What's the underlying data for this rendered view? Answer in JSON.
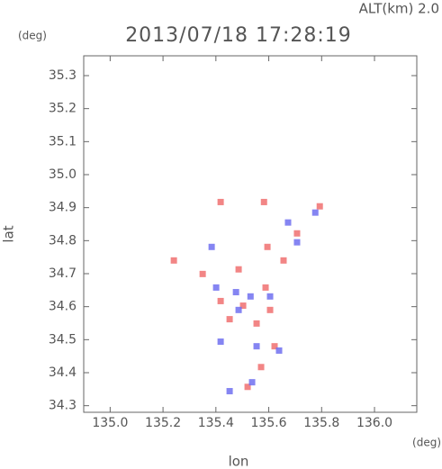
{
  "chart_data": {
    "type": "scatter",
    "title": "2013/07/18 17:28:19",
    "subtitle": "ALT(km) 2.0",
    "y_unit": "(deg)",
    "x_unit": "(deg)",
    "x_label": "lon",
    "y_label": "lat",
    "xlim": [
      134.9,
      136.16
    ],
    "ylim": [
      34.28,
      35.36
    ],
    "xticks": [
      {
        "value": 135,
        "label": "135.0"
      },
      135.2,
      135.4,
      135.6,
      135.8,
      {
        "value": 136,
        "label": "136.0"
      }
    ],
    "yticks": [
      34.3,
      34.4,
      34.5,
      34.6,
      34.7,
      34.8,
      34.9,
      {
        "value": 35,
        "label": "35.0"
      },
      35.1,
      35.2,
      35.3
    ],
    "grid": false,
    "series": [
      {
        "color": "#f07070",
        "x": [
          135.418,
          135.582,
          135.241,
          135.595,
          135.35,
          135.486,
          135.588,
          135.503,
          135.452,
          135.554,
          135.605,
          135.622,
          135.571,
          135.52,
          135.418,
          135.707,
          135.793,
          135.656
        ],
        "y": [
          34.917,
          34.917,
          34.74,
          34.781,
          34.699,
          34.713,
          34.658,
          34.603,
          34.562,
          34.549,
          34.59,
          34.48,
          34.417,
          34.357,
          34.617,
          34.822,
          34.904,
          34.74
        ]
      },
      {
        "color": "#7070f0",
        "x": [
          135.776,
          135.673,
          135.384,
          135.605,
          135.531,
          135.476,
          135.418,
          135.537,
          135.452,
          135.639,
          135.486,
          135.707,
          135.401,
          135.554
        ],
        "y": [
          34.885,
          34.855,
          34.781,
          34.631,
          34.631,
          34.644,
          34.494,
          34.371,
          34.344,
          34.467,
          34.59,
          34.795,
          34.658,
          34.48
        ]
      }
    ]
  }
}
